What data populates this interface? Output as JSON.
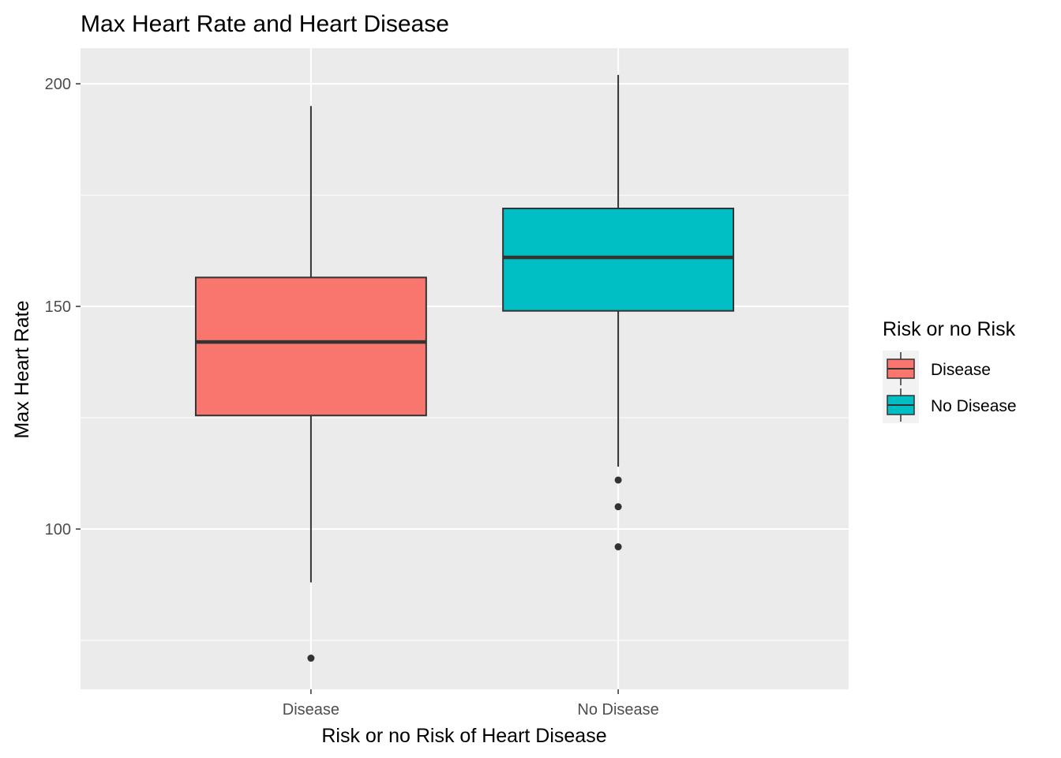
{
  "chart_data": {
    "type": "boxplot",
    "title": "Max Heart Rate and Heart Disease",
    "xlabel": "Risk or no Risk of Heart Disease",
    "ylabel": "Max Heart Rate",
    "ylim": [
      64,
      208
    ],
    "yticks": [
      100,
      150,
      200
    ],
    "grid": true,
    "legend_title": "Risk or no Risk",
    "legend_position": "right",
    "categories": [
      "Disease",
      "No Disease"
    ],
    "series": [
      {
        "name": "Disease",
        "color": "#F8766D",
        "whisker_low": 88,
        "q1": 125.5,
        "median": 142,
        "q3": 156.5,
        "whisker_high": 195,
        "outliers": [
          71
        ]
      },
      {
        "name": "No Disease",
        "color": "#00BFC4",
        "whisker_low": 114,
        "q1": 149,
        "median": 161,
        "q3": 172,
        "whisker_high": 202,
        "outliers": [
          111,
          105,
          96
        ]
      }
    ]
  }
}
